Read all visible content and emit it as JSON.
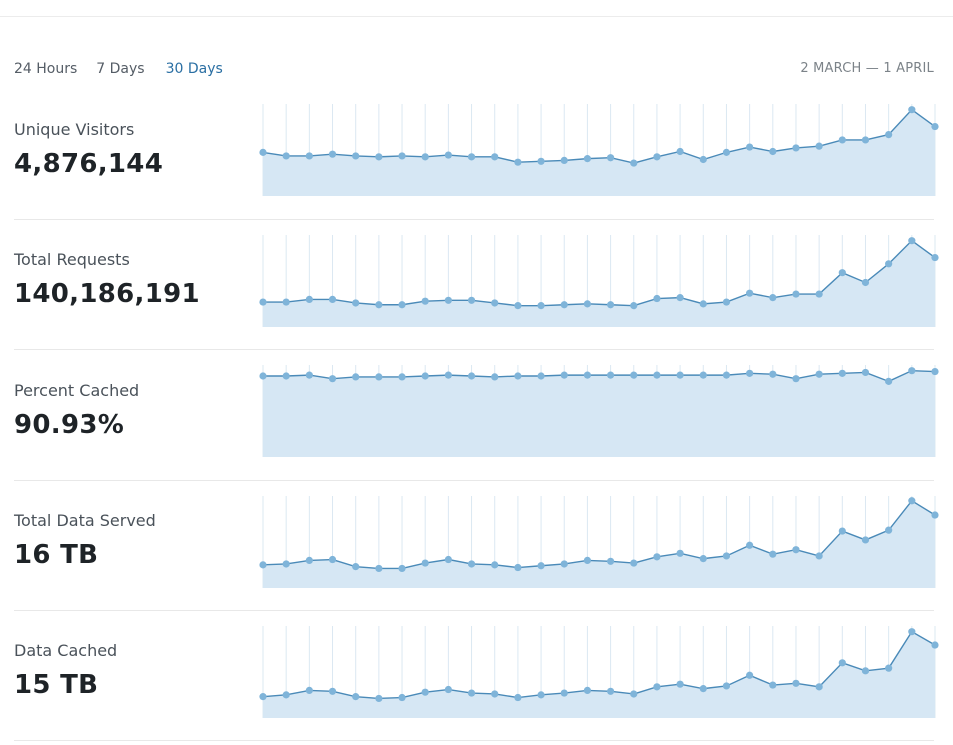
{
  "range_tabs": [
    {
      "label": "24 Hours",
      "active": false
    },
    {
      "label": "7 Days",
      "active": false
    },
    {
      "label": "30 Days",
      "active": true
    }
  ],
  "date_range": "2 MARCH — 1 APRIL",
  "colors": {
    "line": "#4a8ab8",
    "point": "#7fb4d9",
    "area": "#d6e7f4",
    "gridline": "#dbe8f2",
    "active_tab": "#2a6fa3"
  },
  "metrics": [
    {
      "label": "Unique Visitors",
      "value": "4,876,144"
    },
    {
      "label": "Total Requests",
      "value": "140,186,191"
    },
    {
      "label": "Percent Cached",
      "value": "90.93%"
    },
    {
      "label": "Total Data Served",
      "value": "16 TB"
    },
    {
      "label": "Data Cached",
      "value": "15 TB"
    }
  ],
  "chart_data": [
    {
      "type": "area",
      "ylim": [
        0,
        100
      ],
      "series": [
        {
          "values": [
            49,
            45,
            45,
            47,
            45,
            44,
            45,
            44,
            46,
            44,
            44,
            38,
            39,
            40,
            42,
            43,
            37,
            44,
            50,
            41,
            49,
            55,
            50,
            54,
            56,
            63,
            63,
            69,
            97,
            78
          ]
        }
      ]
    },
    {
      "type": "area",
      "ylim": [
        0,
        100
      ],
      "series": [
        {
          "values": [
            28,
            28,
            31,
            31,
            27,
            25,
            25,
            29,
            30,
            30,
            27,
            24,
            24,
            25,
            26,
            25,
            24,
            32,
            33,
            26,
            28,
            38,
            33,
            37,
            37,
            61,
            50,
            71,
            97,
            78
          ]
        }
      ]
    },
    {
      "type": "area",
      "ylim": [
        0,
        100
      ],
      "series": [
        {
          "values": [
            91,
            91,
            92,
            88,
            90,
            90,
            90,
            91,
            92,
            91,
            90,
            91,
            91,
            92,
            92,
            92,
            92,
            92,
            92,
            92,
            92,
            94,
            93,
            88,
            93,
            94,
            95,
            85,
            97,
            96
          ]
        }
      ]
    },
    {
      "type": "area",
      "ylim": [
        0,
        100
      ],
      "series": [
        {
          "values": [
            26,
            27,
            31,
            32,
            24,
            22,
            22,
            28,
            32,
            27,
            26,
            23,
            25,
            27,
            31,
            30,
            28,
            35,
            39,
            33,
            36,
            48,
            38,
            43,
            36,
            64,
            54,
            65,
            98,
            82
          ]
        }
      ]
    },
    {
      "type": "area",
      "ylim": [
        0,
        100
      ],
      "series": [
        {
          "values": [
            24,
            26,
            31,
            30,
            24,
            22,
            23,
            29,
            32,
            28,
            27,
            23,
            26,
            28,
            31,
            30,
            27,
            35,
            38,
            33,
            36,
            48,
            37,
            39,
            35,
            62,
            53,
            56,
            97,
            82
          ]
        }
      ]
    }
  ]
}
